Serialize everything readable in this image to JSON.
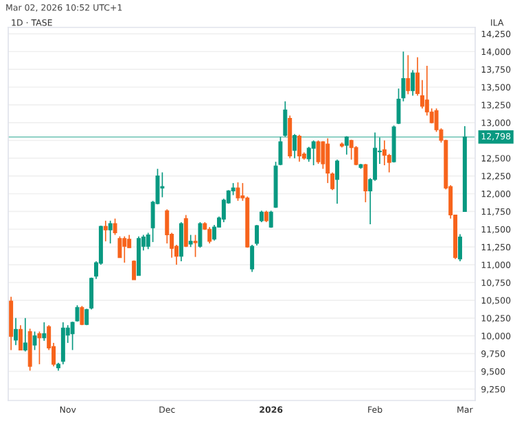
{
  "chart_data": {
    "type": "candlestick",
    "title": "1D · TASE",
    "ylabel": "ILA",
    "annotations": [
      "Mar 02, 2026 10:52 UTC+1"
    ],
    "categories": [
      null,
      null,
      null,
      null,
      null,
      null,
      null,
      null,
      null,
      null,
      null,
      null,
      "Nov",
      null,
      null,
      null,
      null,
      null,
      null,
      null,
      null,
      null,
      null,
      null,
      null,
      null,
      null,
      null,
      null,
      null,
      null,
      null,
      null,
      "Dec",
      null,
      null,
      null,
      null,
      null,
      null,
      null,
      null,
      null,
      null,
      null,
      null,
      null,
      null,
      null,
      null,
      null,
      null,
      null,
      null,
      null,
      "2026",
      null,
      null,
      null,
      null,
      null,
      null,
      null,
      null,
      null,
      null,
      null,
      null,
      null,
      null,
      null,
      null,
      null,
      null,
      null,
      null,
      null,
      "Feb",
      null,
      null,
      null,
      null,
      null,
      null,
      null,
      null,
      null,
      null,
      null,
      null,
      null,
      null,
      null,
      null,
      null,
      null,
      "Mar"
    ],
    "ohlc": [
      [
        10490,
        10550,
        9800,
        9990
      ],
      [
        9940,
        10250,
        9870,
        10090
      ],
      [
        10090,
        10150,
        9800,
        9800
      ],
      [
        9800,
        10250,
        9780,
        9900
      ],
      [
        10060,
        10100,
        9510,
        9570
      ],
      [
        9870,
        10060,
        9800,
        10000
      ],
      [
        10030,
        10060,
        9600,
        9970
      ],
      [
        9970,
        10190,
        9930,
        10030
      ],
      [
        10130,
        10150,
        9800,
        9830
      ],
      [
        9850,
        9900,
        9570,
        9600
      ],
      [
        9550,
        9620,
        9510,
        9600
      ],
      [
        9640,
        10190,
        9600,
        10110
      ],
      [
        10010,
        10150,
        9900,
        10110
      ],
      [
        10030,
        10200,
        9800,
        10190
      ],
      [
        10210,
        10430,
        10200,
        10400
      ],
      [
        10400,
        10420,
        10150,
        10160
      ],
      [
        10160,
        10380,
        10150,
        10370
      ],
      [
        10390,
        10820,
        10370,
        10810
      ],
      [
        10840,
        11050,
        10800,
        11030
      ],
      [
        11020,
        11550,
        11000,
        11540
      ],
      [
        11540,
        11620,
        11330,
        11490
      ],
      [
        11490,
        11620,
        11300,
        11580
      ],
      [
        11580,
        11650,
        11420,
        11450
      ],
      [
        11370,
        11400,
        11100,
        11100
      ],
      [
        11370,
        11400,
        11030,
        11260
      ],
      [
        11360,
        11420,
        11240,
        11240
      ],
      [
        11050,
        11060,
        10790,
        10790
      ],
      [
        10850,
        11400,
        10850,
        11370
      ],
      [
        11260,
        11420,
        11200,
        11390
      ],
      [
        11260,
        11450,
        11220,
        11420
      ],
      [
        11520,
        11900,
        11320,
        11880
      ],
      [
        11860,
        12350,
        11850,
        12250
      ],
      [
        12080,
        12300,
        11950,
        12100
      ],
      [
        11760,
        11780,
        11300,
        11420
      ],
      [
        11430,
        11450,
        11100,
        11230
      ],
      [
        11260,
        11280,
        11000,
        11120
      ],
      [
        11120,
        11600,
        11050,
        11580
      ],
      [
        11650,
        11700,
        11250,
        11260
      ],
      [
        11290,
        11420,
        11250,
        11330
      ],
      [
        11330,
        11420,
        11110,
        11310
      ],
      [
        11260,
        11600,
        11240,
        11580
      ],
      [
        11580,
        11600,
        11490,
        11500
      ],
      [
        11500,
        11530,
        11300,
        11330
      ],
      [
        11360,
        11560,
        11340,
        11530
      ],
      [
        11530,
        11680,
        11530,
        11660
      ],
      [
        11640,
        11930,
        11600,
        11910
      ],
      [
        11870,
        12050,
        11860,
        12040
      ],
      [
        12040,
        12150,
        11980,
        12080
      ],
      [
        12080,
        12160,
        11900,
        11940
      ],
      [
        11970,
        12150,
        11900,
        11940
      ],
      [
        11940,
        11960,
        11240,
        11250
      ],
      [
        10940,
        11280,
        10900,
        11260
      ],
      [
        11300,
        11560,
        11270,
        11550
      ],
      [
        11620,
        11760,
        11600,
        11740
      ],
      [
        11740,
        11760,
        11600,
        11620
      ],
      [
        11530,
        11760,
        11520,
        11740
      ],
      [
        11810,
        12450,
        11800,
        12390
      ],
      [
        12410,
        12800,
        12400,
        12730
      ],
      [
        12820,
        13300,
        12800,
        13180
      ],
      [
        13060,
        13100,
        12500,
        12530
      ],
      [
        12610,
        12840,
        12500,
        12820
      ],
      [
        12810,
        12830,
        12450,
        12530
      ],
      [
        12560,
        12580,
        12480,
        12500
      ],
      [
        12490,
        12660,
        12450,
        12640
      ],
      [
        12640,
        12750,
        12400,
        12730
      ],
      [
        12730,
        12750,
        12420,
        12450
      ],
      [
        12730,
        12740,
        12350,
        12420
      ],
      [
        12700,
        12780,
        12150,
        12290
      ],
      [
        12280,
        12300,
        12050,
        12070
      ],
      [
        12200,
        12480,
        11860,
        12460
      ],
      [
        12700,
        12720,
        12650,
        12670
      ],
      [
        12680,
        12810,
        12550,
        12800
      ],
      [
        12750,
        12760,
        12480,
        12650
      ],
      [
        12650,
        12670,
        12400,
        12410
      ],
      [
        12370,
        12420,
        12350,
        12410
      ],
      [
        12410,
        12420,
        11880,
        12040
      ],
      [
        12040,
        12220,
        11570,
        12200
      ],
      [
        12200,
        12860,
        12180,
        12640
      ],
      [
        12590,
        12790,
        12420,
        12600
      ],
      [
        12620,
        12750,
        12400,
        12540
      ],
      [
        12540,
        12560,
        12300,
        12440
      ],
      [
        12450,
        12960,
        12440,
        12940
      ],
      [
        12990,
        13480,
        12980,
        13330
      ],
      [
        13350,
        14000,
        13300,
        13620
      ],
      [
        13620,
        13950,
        13400,
        13450
      ],
      [
        13450,
        13740,
        13380,
        13700
      ],
      [
        13700,
        13920,
        13380,
        13410
      ],
      [
        13380,
        13600,
        13200,
        13230
      ],
      [
        13320,
        13800,
        13100,
        13150
      ],
      [
        13150,
        13200,
        12990,
        13000
      ],
      [
        13170,
        13200,
        12870,
        12900
      ],
      [
        12900,
        12920,
        12720,
        12750
      ],
      [
        12750,
        12760,
        12060,
        12080
      ],
      [
        12100,
        12120,
        11650,
        11700
      ],
      [
        11700,
        11700,
        11080,
        11100
      ],
      [
        11080,
        11430,
        11050,
        11390
      ],
      [
        11750,
        12950,
        11750,
        12800
      ]
    ],
    "colors": [
      "#f7631b",
      "#089981",
      "#f7631b",
      "#089981",
      "#f7631b",
      "#089981",
      "#f7631b",
      "#089981",
      "#f7631b",
      "#f7631b",
      "#089981",
      "#089981",
      "#089981",
      "#089981",
      "#089981",
      "#f7631b",
      "#089981",
      "#089981",
      "#089981",
      "#089981",
      "#f7631b",
      "#089981",
      "#f7631b",
      "#f7631b",
      "#f7631b",
      "#f7631b",
      "#f7631b",
      "#089981",
      "#089981",
      "#089981",
      "#089981",
      "#089981",
      "#089981",
      "#f7631b",
      "#f7631b",
      "#f7631b",
      "#089981",
      "#f7631b",
      "#089981",
      "#f7631b",
      "#089981",
      "#f7631b",
      "#f7631b",
      "#089981",
      "#089981",
      "#089981",
      "#089981",
      "#089981",
      "#f7631b",
      "#f7631b",
      "#f7631b",
      "#089981",
      "#089981",
      "#089981",
      "#f7631b",
      "#089981",
      "#089981",
      "#089981",
      "#089981",
      "#f7631b",
      "#089981",
      "#f7631b",
      "#f7631b",
      "#089981",
      "#089981",
      "#f7631b",
      "#f7631b",
      "#f7631b",
      "#f7631b",
      "#089981",
      "#f7631b",
      "#089981",
      "#f7631b",
      "#f7631b",
      "#089981",
      "#f7631b",
      "#089981",
      "#089981",
      "#089981",
      "#f7631b",
      "#f7631b",
      "#089981",
      "#089981",
      "#089981",
      "#f7631b",
      "#089981",
      "#f7631b",
      "#f7631b",
      "#f7631b",
      "#f7631b",
      "#f7631b",
      "#f7631b",
      "#f7631b",
      "#f7631b",
      "#f7631b",
      "#089981",
      "#089981"
    ],
    "ylim": [
      9090,
      14340
    ],
    "yticks": [
      {
        "value": 9250,
        "label": "9,250"
      },
      {
        "value": 9500,
        "label": "9,500"
      },
      {
        "value": 9750,
        "label": "9,750"
      },
      {
        "value": 10000,
        "label": "10,000"
      },
      {
        "value": 10250,
        "label": "10,250"
      },
      {
        "value": 10500,
        "label": "10,500"
      },
      {
        "value": 10750,
        "label": "10,750"
      },
      {
        "value": 11000,
        "label": "11,000"
      },
      {
        "value": 11250,
        "label": "11,250"
      },
      {
        "value": 11500,
        "label": "11,500"
      },
      {
        "value": 11750,
        "label": "11,750"
      },
      {
        "value": 12000,
        "label": "12,000"
      },
      {
        "value": 12250,
        "label": "12,250"
      },
      {
        "value": 12500,
        "label": "12,500"
      },
      {
        "value": 12750,
        "label": null
      },
      {
        "value": 13000,
        "label": "13,000"
      },
      {
        "value": 13250,
        "label": "13,250"
      },
      {
        "value": 13500,
        "label": "13,500"
      },
      {
        "value": 13750,
        "label": "13,750"
      },
      {
        "value": 14000,
        "label": "14,000"
      },
      {
        "value": 14250,
        "label": "14,250"
      }
    ],
    "ref_lines": [
      {
        "axis": "y",
        "value": 12798,
        "label": "12,798",
        "color": "#089981",
        "line_style": "solid"
      }
    ],
    "grid": "y"
  }
}
